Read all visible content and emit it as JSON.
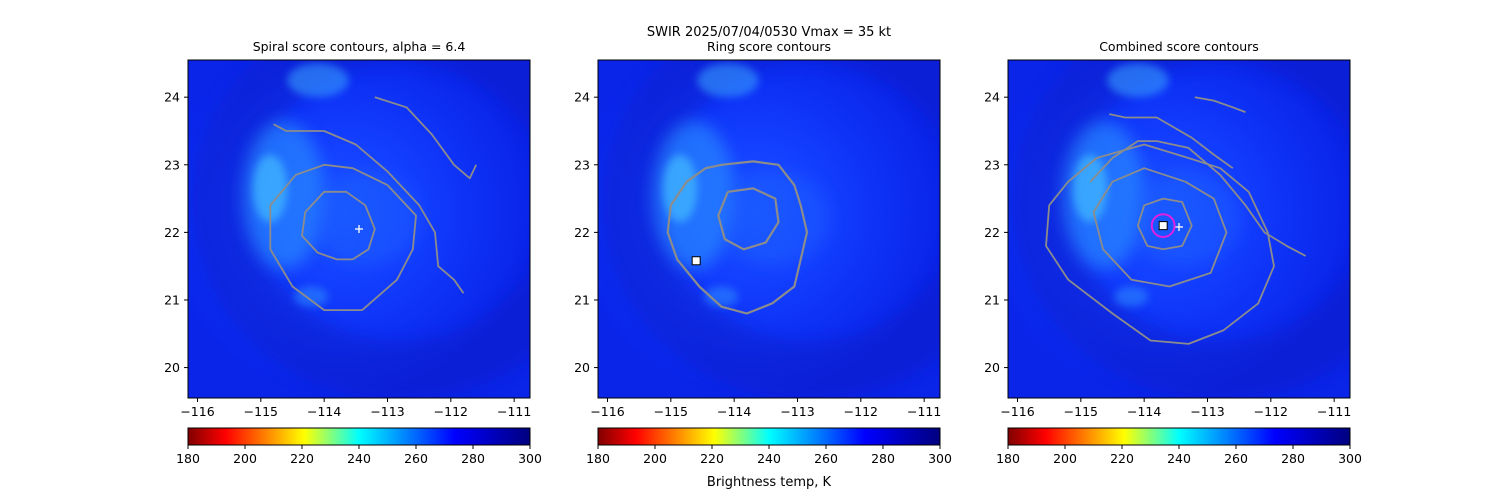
{
  "figure": {
    "suptitle_line1": "SWIR  2025/07/04/0530    Vmax = 35 kt",
    "colorbar_label": "Brightness temp, K"
  },
  "colors": {
    "contour": "#8c8c8c",
    "marker_plus": "#ffffff",
    "marker_square_edge": "#000000",
    "marker_square_fill": "#ffffff",
    "circle": "#e020e0"
  },
  "chart_data": [
    {
      "type": "heatmap",
      "title": "Spiral score contours, alpha =  6.4",
      "xlim": [
        -116.15,
        -110.75
      ],
      "ylim": [
        19.55,
        24.55
      ],
      "xticks": [
        "−116",
        "−115",
        "−114",
        "−113",
        "−112",
        "−111"
      ],
      "yticks": [
        "20",
        "21",
        "22",
        "23",
        "24"
      ],
      "colorbar": {
        "cmap": "jet",
        "range": [
          180,
          300
        ],
        "ticks": [
          "180",
          "200",
          "220",
          "240",
          "260",
          "280",
          "300"
        ]
      },
      "markers": [
        {
          "type": "plus",
          "lon": -113.45,
          "lat": 22.05
        }
      ],
      "contours": [
        [
          [
            -113.55,
            21.6
          ],
          [
            -113.3,
            21.75
          ],
          [
            -113.2,
            22.05
          ],
          [
            -113.35,
            22.4
          ],
          [
            -113.65,
            22.6
          ],
          [
            -114.0,
            22.6
          ],
          [
            -114.3,
            22.3
          ],
          [
            -114.35,
            21.95
          ],
          [
            -114.1,
            21.7
          ],
          [
            -113.8,
            21.6
          ],
          [
            -113.55,
            21.6
          ]
        ],
        [
          [
            -113.0,
            22.7
          ],
          [
            -112.55,
            22.25
          ],
          [
            -112.6,
            21.75
          ],
          [
            -112.85,
            21.3
          ],
          [
            -113.4,
            20.85
          ],
          [
            -114.0,
            20.85
          ],
          [
            -114.5,
            21.2
          ],
          [
            -114.85,
            21.75
          ],
          [
            -114.85,
            22.4
          ],
          [
            -114.45,
            22.85
          ],
          [
            -114.0,
            23.0
          ],
          [
            -113.55,
            22.95
          ],
          [
            -113.0,
            22.7
          ]
        ],
        [
          [
            -114.8,
            23.6
          ],
          [
            -114.6,
            23.5
          ],
          [
            -114.0,
            23.5
          ],
          [
            -113.5,
            23.3
          ],
          [
            -113.0,
            22.9
          ],
          [
            -112.5,
            22.4
          ],
          [
            -112.25,
            22.0
          ],
          [
            -112.2,
            21.5
          ],
          [
            -111.95,
            21.3
          ],
          [
            -111.8,
            21.1
          ]
        ],
        [
          [
            -113.2,
            24.0
          ],
          [
            -112.7,
            23.85
          ],
          [
            -112.3,
            23.45
          ],
          [
            -111.95,
            23.0
          ],
          [
            -111.7,
            22.8
          ],
          [
            -111.6,
            23.0
          ]
        ]
      ]
    },
    {
      "type": "heatmap",
      "title": "Ring score contours",
      "xlim": [
        -116.15,
        -110.75
      ],
      "ylim": [
        19.55,
        24.55
      ],
      "xticks": [
        "−116",
        "−115",
        "−114",
        "−113",
        "−112",
        "−111"
      ],
      "yticks": [
        "20",
        "21",
        "22",
        "23",
        "24"
      ],
      "colorbar": {
        "cmap": "jet",
        "range": [
          180,
          300
        ],
        "ticks": [
          "180",
          "200",
          "220",
          "240",
          "260",
          "280",
          "300"
        ]
      },
      "markers": [
        {
          "type": "square",
          "lon": -114.6,
          "lat": 21.58
        }
      ],
      "contours": [
        [
          [
            -114.2,
            23.0
          ],
          [
            -113.7,
            23.05
          ],
          [
            -113.3,
            23.0
          ],
          [
            -113.05,
            22.7
          ],
          [
            -112.95,
            22.4
          ],
          [
            -112.85,
            22.0
          ],
          [
            -112.95,
            21.6
          ],
          [
            -113.05,
            21.2
          ],
          [
            -113.4,
            20.95
          ],
          [
            -113.8,
            20.8
          ],
          [
            -114.2,
            20.9
          ],
          [
            -114.55,
            21.2
          ],
          [
            -114.9,
            21.6
          ],
          [
            -115.05,
            22.0
          ],
          [
            -115.0,
            22.4
          ],
          [
            -114.75,
            22.75
          ],
          [
            -114.45,
            22.95
          ],
          [
            -114.2,
            23.0
          ]
        ],
        [
          [
            -114.1,
            22.6
          ],
          [
            -113.7,
            22.65
          ],
          [
            -113.35,
            22.5
          ],
          [
            -113.3,
            22.15
          ],
          [
            -113.5,
            21.85
          ],
          [
            -113.85,
            21.75
          ],
          [
            -114.15,
            21.9
          ],
          [
            -114.25,
            22.25
          ],
          [
            -114.1,
            22.6
          ]
        ]
      ]
    },
    {
      "type": "heatmap",
      "title": "Combined score contours",
      "xlim": [
        -116.15,
        -110.75
      ],
      "ylim": [
        19.55,
        24.55
      ],
      "xticks": [
        "−116",
        "−115",
        "−114",
        "−113",
        "−112",
        "−111"
      ],
      "yticks": [
        "20",
        "21",
        "22",
        "23",
        "24"
      ],
      "colorbar": {
        "cmap": "jet",
        "range": [
          180,
          300
        ],
        "ticks": [
          "180",
          "200",
          "220",
          "240",
          "260",
          "280",
          "300"
        ]
      },
      "markers": [
        {
          "type": "plus",
          "lon": -113.45,
          "lat": 22.08
        },
        {
          "type": "square",
          "lon": -113.7,
          "lat": 22.1
        },
        {
          "type": "circle",
          "lon": -113.7,
          "lat": 22.1,
          "r_deg": 0.18
        }
      ],
      "contours": [
        [
          [
            -113.7,
            21.75
          ],
          [
            -113.4,
            21.8
          ],
          [
            -113.25,
            22.1
          ],
          [
            -113.4,
            22.45
          ],
          [
            -113.7,
            22.5
          ],
          [
            -114.0,
            22.4
          ],
          [
            -114.1,
            22.1
          ],
          [
            -113.95,
            21.8
          ],
          [
            -113.7,
            21.75
          ]
        ],
        [
          [
            -113.35,
            22.75
          ],
          [
            -112.9,
            22.5
          ],
          [
            -112.7,
            22.0
          ],
          [
            -112.95,
            21.4
          ],
          [
            -113.6,
            21.2
          ],
          [
            -114.2,
            21.3
          ],
          [
            -114.65,
            21.75
          ],
          [
            -114.8,
            22.3
          ],
          [
            -114.5,
            22.75
          ],
          [
            -114.0,
            22.95
          ],
          [
            -113.35,
            22.75
          ]
        ],
        [
          [
            -112.35,
            22.6
          ],
          [
            -112.05,
            22.0
          ],
          [
            -111.95,
            21.5
          ],
          [
            -112.2,
            20.95
          ],
          [
            -112.75,
            20.55
          ],
          [
            -113.3,
            20.35
          ],
          [
            -113.9,
            20.4
          ],
          [
            -114.5,
            20.8
          ],
          [
            -115.2,
            21.3
          ],
          [
            -115.55,
            21.8
          ],
          [
            -115.5,
            22.4
          ],
          [
            -115.2,
            22.75
          ],
          [
            -114.75,
            23.1
          ],
          [
            -114.0,
            23.3
          ],
          [
            -113.3,
            23.1
          ],
          [
            -112.8,
            22.95
          ],
          [
            -112.35,
            22.6
          ]
        ],
        [
          [
            -114.85,
            22.75
          ],
          [
            -114.5,
            23.1
          ],
          [
            -114.1,
            23.35
          ],
          [
            -113.8,
            23.35
          ],
          [
            -113.3,
            23.25
          ],
          [
            -112.8,
            22.85
          ],
          [
            -112.4,
            22.4
          ],
          [
            -112.1,
            22.0
          ],
          [
            -111.75,
            21.8
          ],
          [
            -111.45,
            21.65
          ]
        ],
        [
          [
            -114.55,
            23.75
          ],
          [
            -114.3,
            23.7
          ],
          [
            -113.8,
            23.7
          ],
          [
            -113.25,
            23.4
          ],
          [
            -112.9,
            23.15
          ],
          [
            -112.6,
            22.95
          ]
        ],
        [
          [
            -113.2,
            24.0
          ],
          [
            -112.9,
            23.95
          ],
          [
            -112.6,
            23.85
          ],
          [
            -112.4,
            23.78
          ]
        ]
      ]
    }
  ]
}
